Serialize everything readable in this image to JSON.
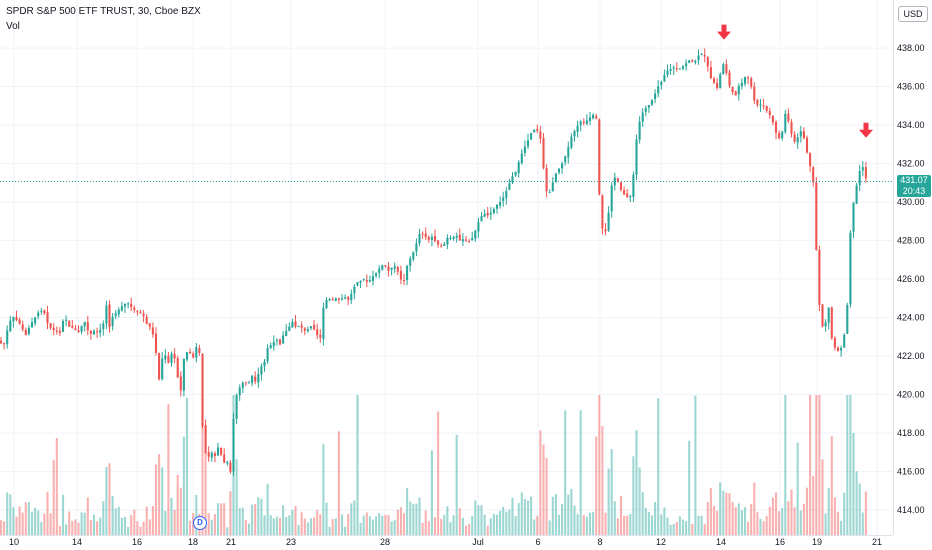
{
  "legend": {
    "symbol_line": "SPDR S&P 500 ETF TRUST, 30, Cboe BZX",
    "volume_label": "Vol"
  },
  "currency_button": "USD",
  "last_price": {
    "value": "431.07",
    "countdown": "20:43"
  },
  "dividend_marker": "D",
  "colors": {
    "up": "#26a69a",
    "down": "#ef5350",
    "arrow": "#f23645",
    "grid": "#f0f3fa",
    "last_price_line": "#26a69a"
  },
  "chart_data": {
    "type": "candlestick",
    "x_tick_labels": [
      "10",
      "14",
      "16",
      "18",
      "21",
      "23",
      "28",
      "Jul",
      "6",
      "8",
      "12",
      "14",
      "16",
      "19",
      "21"
    ],
    "y_tick_labels": [
      "414.00",
      "416.00",
      "418.00",
      "420.00",
      "422.00",
      "424.00",
      "426.00",
      "428.00",
      "430.00",
      "432.00",
      "434.00",
      "436.00",
      "438.00"
    ],
    "ylim": [
      412.7,
      440.5
    ],
    "grid": true,
    "price_path": [
      [
        0,
        422.8
      ],
      [
        3,
        422.4
      ],
      [
        8,
        423.5
      ],
      [
        12,
        424.1
      ],
      [
        18,
        423.8
      ],
      [
        22,
        423.5
      ],
      [
        25,
        423.0
      ],
      [
        30,
        423.6
      ],
      [
        35,
        424.0
      ],
      [
        40,
        424.4
      ],
      [
        45,
        424.2
      ],
      [
        48,
        423.6
      ],
      [
        52,
        423.4
      ],
      [
        55,
        423.3
      ],
      [
        60,
        423.2
      ],
      [
        62,
        423.8
      ],
      [
        67,
        423.9
      ],
      [
        70,
        423.4
      ],
      [
        73,
        423.5
      ],
      [
        78,
        423.2
      ],
      [
        82,
        423.6
      ],
      [
        85,
        423.8
      ],
      [
        88,
        423.3
      ],
      [
        92,
        423.1
      ],
      [
        95,
        423.4
      ],
      [
        98,
        423.2
      ],
      [
        103,
        423.6
      ],
      [
        107,
        424.8
      ],
      [
        109,
        423.4
      ],
      [
        112,
        424.0
      ],
      [
        117,
        424.3
      ],
      [
        122,
        424.6
      ],
      [
        127,
        424.8
      ],
      [
        132,
        424.5
      ],
      [
        136,
        424.3
      ],
      [
        141,
        424.2
      ],
      [
        145,
        424.0
      ],
      [
        148,
        423.4
      ],
      [
        151,
        423.6
      ],
      [
        155,
        422.6
      ],
      [
        160,
        420.4
      ],
      [
        163,
        422.4
      ],
      [
        168,
        421.6
      ],
      [
        172,
        422.2
      ],
      [
        176,
        421.7
      ],
      [
        180,
        419.8
      ],
      [
        184,
        421.9
      ],
      [
        188,
        422.3
      ],
      [
        193,
        421.9
      ],
      [
        196,
        422.5
      ],
      [
        200,
        422.1
      ],
      [
        203,
        417.6
      ],
      [
        207,
        416.6
      ],
      [
        211,
        417.0
      ],
      [
        215,
        416.8
      ],
      [
        219,
        417.4
      ],
      [
        223,
        416.4
      ],
      [
        227,
        416.6
      ],
      [
        230,
        415.6
      ],
      [
        233,
        418.5
      ],
      [
        236,
        419.9
      ],
      [
        240,
        420.4
      ],
      [
        244,
        420.7
      ],
      [
        248,
        420.5
      ],
      [
        252,
        421.0
      ],
      [
        256,
        420.6
      ],
      [
        260,
        421.4
      ],
      [
        264,
        421.6
      ],
      [
        268,
        422.5
      ],
      [
        272,
        422.6
      ],
      [
        276,
        422.9
      ],
      [
        280,
        422.6
      ],
      [
        284,
        423.2
      ],
      [
        288,
        423.4
      ],
      [
        292,
        423.8
      ],
      [
        296,
        423.5
      ],
      [
        300,
        423.6
      ],
      [
        304,
        423.3
      ],
      [
        308,
        423.4
      ],
      [
        312,
        423.6
      ],
      [
        316,
        423.2
      ],
      [
        320,
        422.8
      ],
      [
        324,
        424.8
      ],
      [
        328,
        425.0
      ],
      [
        332,
        424.9
      ],
      [
        336,
        425.0
      ],
      [
        340,
        424.9
      ],
      [
        344,
        425.1
      ],
      [
        348,
        424.9
      ],
      [
        352,
        425.3
      ],
      [
        356,
        425.8
      ],
      [
        360,
        425.9
      ],
      [
        364,
        426.0
      ],
      [
        368,
        425.8
      ],
      [
        372,
        426.1
      ],
      [
        376,
        426.3
      ],
      [
        380,
        426.6
      ],
      [
        384,
        426.8
      ],
      [
        388,
        426.4
      ],
      [
        392,
        426.6
      ],
      [
        396,
        426.7
      ],
      [
        400,
        426.0
      ],
      [
        404,
        425.9
      ],
      [
        408,
        426.9
      ],
      [
        412,
        427.2
      ],
      [
        416,
        427.8
      ],
      [
        420,
        428.4
      ],
      [
        424,
        428.3
      ],
      [
        428,
        428.0
      ],
      [
        432,
        428.2
      ],
      [
        436,
        427.9
      ],
      [
        440,
        427.7
      ],
      [
        444,
        427.8
      ],
      [
        448,
        428.2
      ],
      [
        452,
        428.1
      ],
      [
        456,
        428.3
      ],
      [
        460,
        428.0
      ],
      [
        464,
        428.1
      ],
      [
        468,
        427.9
      ],
      [
        472,
        428.1
      ],
      [
        476,
        428.6
      ],
      [
        480,
        429.2
      ],
      [
        484,
        429.4
      ],
      [
        488,
        429.3
      ],
      [
        492,
        429.5
      ],
      [
        496,
        429.8
      ],
      [
        500,
        430.0
      ],
      [
        504,
        430.3
      ],
      [
        508,
        430.8
      ],
      [
        512,
        431.3
      ],
      [
        516,
        431.6
      ],
      [
        520,
        432.3
      ],
      [
        524,
        432.8
      ],
      [
        528,
        433.2
      ],
      [
        532,
        433.7
      ],
      [
        536,
        433.8
      ],
      [
        540,
        433.5
      ],
      [
        543,
        432.0
      ],
      [
        546,
        430.6
      ],
      [
        549,
        430.4
      ],
      [
        552,
        430.9
      ],
      [
        556,
        431.5
      ],
      [
        560,
        431.8
      ],
      [
        564,
        432.2
      ],
      [
        568,
        432.8
      ],
      [
        572,
        433.5
      ],
      [
        576,
        433.8
      ],
      [
        580,
        434.2
      ],
      [
        584,
        434.1
      ],
      [
        588,
        434.3
      ],
      [
        592,
        434.5
      ],
      [
        596,
        434.6
      ],
      [
        600,
        429.5
      ],
      [
        603,
        428.4
      ],
      [
        606,
        428.5
      ],
      [
        609,
        429.6
      ],
      [
        612,
        431.0
      ],
      [
        616,
        431.4
      ],
      [
        620,
        430.7
      ],
      [
        624,
        430.4
      ],
      [
        628,
        430.2
      ],
      [
        632,
        430.4
      ],
      [
        635,
        432.6
      ],
      [
        638,
        433.9
      ],
      [
        642,
        434.6
      ],
      [
        646,
        434.9
      ],
      [
        650,
        435.1
      ],
      [
        654,
        435.5
      ],
      [
        658,
        436.0
      ],
      [
        662,
        436.3
      ],
      [
        666,
        436.8
      ],
      [
        670,
        436.9
      ],
      [
        674,
        437.0
      ],
      [
        678,
        436.9
      ],
      [
        682,
        437.0
      ],
      [
        686,
        437.2
      ],
      [
        690,
        437.4
      ],
      [
        694,
        437.2
      ],
      [
        698,
        437.6
      ],
      [
        702,
        437.7
      ],
      [
        706,
        437.5
      ],
      [
        708,
        437.0
      ],
      [
        711,
        436.4
      ],
      [
        714,
        436.2
      ],
      [
        717,
        435.9
      ],
      [
        720,
        436.6
      ],
      [
        723,
        437.2
      ],
      [
        726,
        436.8
      ],
      [
        729,
        436.1
      ],
      [
        732,
        435.8
      ],
      [
        735,
        435.4
      ],
      [
        738,
        436.0
      ],
      [
        742,
        436.2
      ],
      [
        746,
        436.6
      ],
      [
        750,
        436.3
      ],
      [
        754,
        435.3
      ],
      [
        758,
        435.0
      ],
      [
        762,
        435.1
      ],
      [
        766,
        434.8
      ],
      [
        770,
        434.5
      ],
      [
        774,
        434.0
      ],
      [
        778,
        433.2
      ],
      [
        782,
        433.6
      ],
      [
        786,
        434.8
      ],
      [
        790,
        433.8
      ],
      [
        794,
        433.1
      ],
      [
        798,
        433.4
      ],
      [
        802,
        433.8
      ],
      [
        806,
        432.8
      ],
      [
        810,
        431.9
      ],
      [
        814,
        430.8
      ],
      [
        817,
        426.5
      ],
      [
        820,
        424.2
      ],
      [
        823,
        423.4
      ],
      [
        826,
        423.8
      ],
      [
        829,
        424.6
      ],
      [
        832,
        422.8
      ],
      [
        836,
        422.3
      ],
      [
        840,
        422.2
      ],
      [
        844,
        423.0
      ],
      [
        848,
        425.0
      ],
      [
        850,
        428.2
      ],
      [
        853,
        429.8
      ],
      [
        856,
        430.7
      ],
      [
        859,
        431.5
      ],
      [
        862,
        432.0
      ],
      [
        865,
        431.3
      ],
      [
        868,
        431.07
      ]
    ],
    "annotations": [
      "down-arrow",
      "down-arrow"
    ]
  }
}
